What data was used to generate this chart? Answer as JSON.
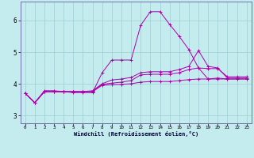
{
  "xlabel": "Windchill (Refroidissement éolien,°C)",
  "background_color": "#c4ecee",
  "grid_color": "#9ecdd4",
  "line_color": "#aa00aa",
  "xlim": [
    -0.5,
    23.5
  ],
  "ylim": [
    2.75,
    6.6
  ],
  "yticks": [
    3,
    4,
    5,
    6
  ],
  "xticks": [
    0,
    1,
    2,
    3,
    4,
    5,
    6,
    7,
    8,
    9,
    10,
    11,
    12,
    13,
    14,
    15,
    16,
    17,
    18,
    19,
    20,
    21,
    22,
    23
  ],
  "series": [
    {
      "x": [
        0,
        1,
        2,
        3,
        4,
        5,
        6,
        7,
        8,
        9,
        10,
        11,
        12,
        13,
        14,
        15,
        16,
        17,
        18,
        19,
        20,
        21,
        22,
        23
      ],
      "y": [
        3.7,
        3.4,
        3.78,
        3.78,
        3.75,
        3.72,
        3.72,
        3.72,
        4.35,
        4.75,
        4.75,
        4.75,
        5.85,
        6.28,
        6.28,
        5.88,
        5.5,
        5.08,
        4.5,
        4.15,
        4.15,
        4.15,
        4.15,
        4.15
      ]
    },
    {
      "x": [
        0,
        1,
        2,
        3,
        4,
        5,
        6,
        7,
        8,
        9,
        10,
        11,
        12,
        13,
        14,
        15,
        16,
        17,
        18,
        19,
        20,
        21,
        22,
        23
      ],
      "y": [
        3.7,
        3.4,
        3.75,
        3.75,
        3.75,
        3.75,
        3.75,
        3.78,
        4.0,
        4.12,
        4.15,
        4.2,
        4.35,
        4.38,
        4.38,
        4.38,
        4.45,
        4.55,
        5.05,
        4.55,
        4.5,
        4.18,
        4.18,
        4.18
      ]
    },
    {
      "x": [
        0,
        1,
        2,
        3,
        4,
        5,
        6,
        7,
        8,
        9,
        10,
        11,
        12,
        13,
        14,
        15,
        16,
        17,
        18,
        19,
        20,
        21,
        22,
        23
      ],
      "y": [
        3.7,
        3.4,
        3.75,
        3.75,
        3.75,
        3.75,
        3.75,
        3.75,
        3.98,
        4.02,
        4.05,
        4.1,
        4.28,
        4.3,
        4.3,
        4.3,
        4.35,
        4.45,
        4.5,
        4.48,
        4.48,
        4.22,
        4.22,
        4.22
      ]
    },
    {
      "x": [
        0,
        1,
        2,
        3,
        4,
        5,
        6,
        7,
        8,
        9,
        10,
        11,
        12,
        13,
        14,
        15,
        16,
        17,
        18,
        19,
        20,
        21,
        22,
        23
      ],
      "y": [
        3.7,
        3.4,
        3.75,
        3.75,
        3.75,
        3.75,
        3.75,
        3.75,
        3.95,
        3.97,
        3.98,
        4.0,
        4.05,
        4.07,
        4.07,
        4.07,
        4.1,
        4.13,
        4.15,
        4.15,
        4.18,
        4.15,
        4.15,
        4.15
      ]
    }
  ]
}
